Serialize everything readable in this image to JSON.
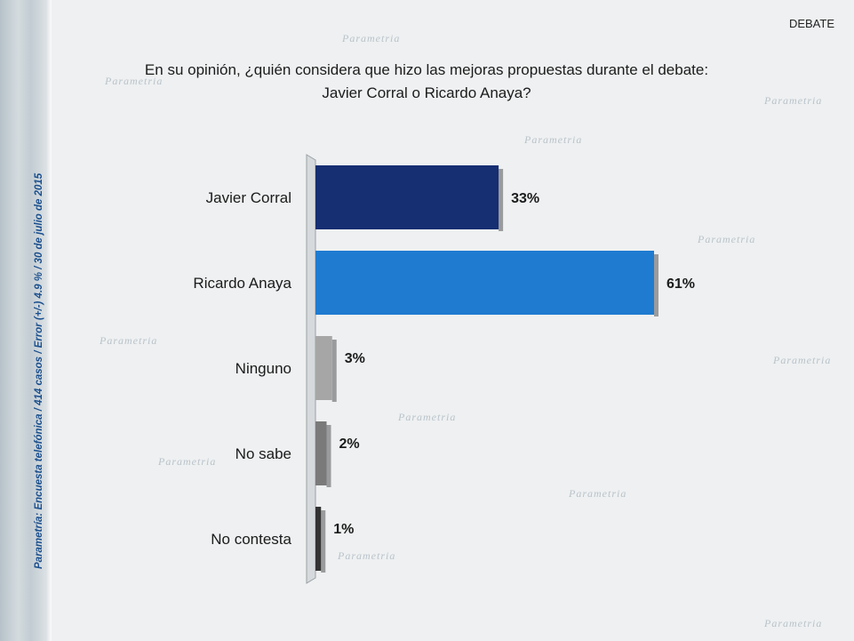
{
  "header": {
    "tag": "DEBATE",
    "question": "En su opinión, ¿quién considera que hizo las mejoras propuestas durante el debate:",
    "question_line2": "Javier Corral o Ricardo Anaya?"
  },
  "side_note": "Parametría: Encuesta telefónica / 414 casos / Error (+/-) 4.9 % / 30 de julio de 2015",
  "watermark_text": "Parametria",
  "colors": {
    "bar_javier": "#162f72",
    "bar_ricardo": "#1f7bd0",
    "bar_ninguno": "#a6a6a6",
    "bar_nosabe": "#7a7a7a",
    "bar_nocontesta": "#333333",
    "side_note": "#1a4f8e"
  },
  "chart_data": {
    "type": "bar",
    "orientation": "horizontal",
    "categories": [
      "Javier Corral",
      "Ricardo Anaya",
      "Ninguno",
      "No sabe",
      "No contesta"
    ],
    "values": [
      33,
      61,
      3,
      2,
      1
    ],
    "value_labels": [
      "33%",
      "61%",
      "3%",
      "2%",
      "1%"
    ],
    "xlim": [
      0,
      70
    ],
    "title": "",
    "xlabel": "",
    "ylabel": ""
  }
}
